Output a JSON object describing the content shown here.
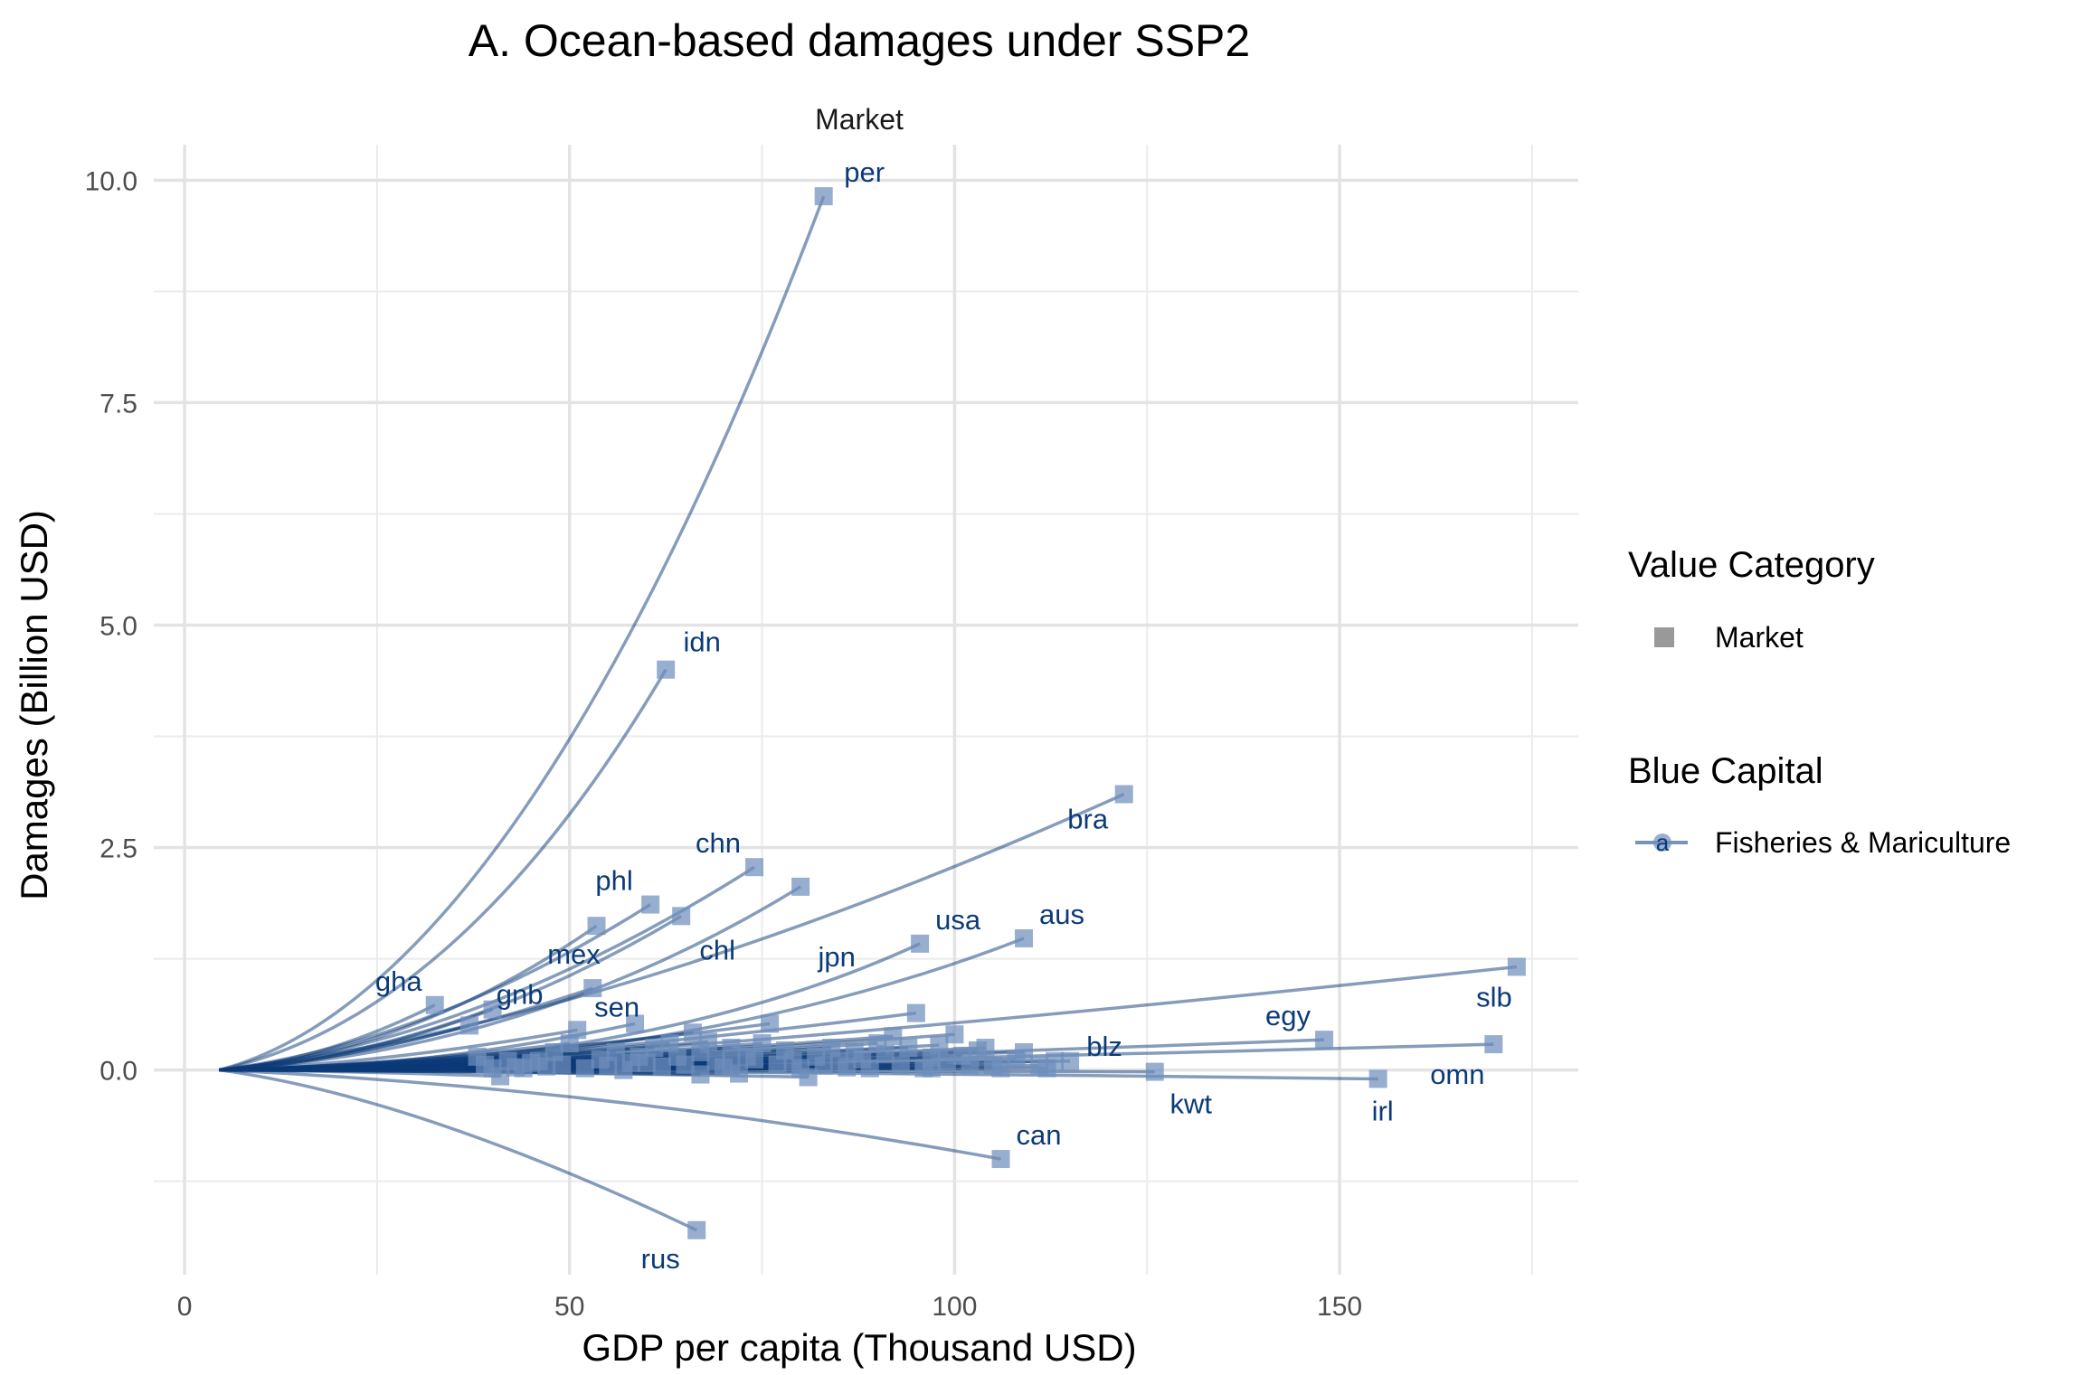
{
  "chart_data": {
    "type": "scatter",
    "title": "A. Ocean-based damages under SSP2",
    "facet": "Market",
    "xlabel": "GDP per capita (Thousand USD)",
    "ylabel": "Damages (Billion USD)",
    "xlim": [
      -4,
      181
    ],
    "ylim": [
      -2.3,
      10.4
    ],
    "x_ticks": [
      0,
      50,
      100,
      150
    ],
    "x_tick_labels": [
      "0",
      "50",
      "100",
      "150"
    ],
    "y_ticks": [
      0,
      2.5,
      5,
      7.5,
      10
    ],
    "y_tick_labels": [
      "0.0",
      "2.5",
      "5.0",
      "7.5",
      "10.0"
    ],
    "grid": true,
    "origin": [
      4.5,
      0
    ],
    "line_color": "#0b3a78",
    "marker_color": "#6f8fbd",
    "legend": {
      "position": "right",
      "value_category_title": "Value Category",
      "value_category_item": "Market",
      "value_category_color": "#999999",
      "blue_capital_title": "Blue Capital",
      "blue_capital_item": "Fisheries & Mariculture",
      "blue_capital_glyph": "a"
    },
    "labeled_points": [
      {
        "label": "per",
        "x": 83,
        "y": 9.82,
        "ctrl_x": 44,
        "ctrl_y": 0.9
      },
      {
        "label": "idn",
        "x": 62.5,
        "y": 4.5,
        "ctrl_x": 36,
        "ctrl_y": 0.6
      },
      {
        "label": "bra",
        "x": 122,
        "y": 3.1,
        "ctrl_x": 55,
        "ctrl_y": 0.5
      },
      {
        "label": "chn",
        "x": 74,
        "y": 2.28,
        "ctrl_x": 38,
        "ctrl_y": 0.3
      },
      {
        "label": "jpn",
        "x": 80,
        "y": 2.06,
        "ctrl_x": 45,
        "ctrl_y": 0.2
      },
      {
        "label": "phl",
        "x": 60.5,
        "y": 1.86,
        "ctrl_x": 32,
        "ctrl_y": 0.3
      },
      {
        "label": "chl",
        "x": 64.5,
        "y": 1.73,
        "ctrl_x": 35,
        "ctrl_y": 0.2
      },
      {
        "label": "mex",
        "x": 53.5,
        "y": 1.62,
        "ctrl_x": 30,
        "ctrl_y": 0.2
      },
      {
        "label": "usa",
        "x": 95.5,
        "y": 1.42,
        "ctrl_x": 60,
        "ctrl_y": 0.0
      },
      {
        "label": "aus",
        "x": 109,
        "y": 1.48,
        "ctrl_x": 65,
        "ctrl_y": 0.0
      },
      {
        "label": "gha",
        "x": 32.5,
        "y": 0.73,
        "ctrl_x": 18,
        "ctrl_y": 0.1
      },
      {
        "label": "gnb",
        "x": 40,
        "y": 0.68,
        "ctrl_x": 20,
        "ctrl_y": 0.05
      },
      {
        "label": "sen",
        "x": 58.5,
        "y": 0.52,
        "ctrl_x": 30,
        "ctrl_y": 0.0
      },
      {
        "label": "slb",
        "x": 173,
        "y": 1.16,
        "ctrl_x": 60,
        "ctrl_y": 0.1
      },
      {
        "label": "egy",
        "x": 148,
        "y": 0.34,
        "ctrl_x": 60,
        "ctrl_y": 0.05
      },
      {
        "label": "omn",
        "x": 170,
        "y": 0.29,
        "ctrl_x": 70,
        "ctrl_y": 0.05
      },
      {
        "label": "blz",
        "x": 115,
        "y": 0.1,
        "ctrl_x": 50,
        "ctrl_y": 0.0
      },
      {
        "label": "kwt",
        "x": 126,
        "y": -0.02,
        "ctrl_x": 55,
        "ctrl_y": 0.0
      },
      {
        "label": "irl",
        "x": 155,
        "y": -0.1,
        "ctrl_x": 60,
        "ctrl_y": 0.0
      },
      {
        "label": "can",
        "x": 106,
        "y": -1.0,
        "ctrl_x": 55,
        "ctrl_y": -0.2
      },
      {
        "label": "rus",
        "x": 66.5,
        "y": -1.8,
        "ctrl_x": 30,
        "ctrl_y": -0.3
      }
    ],
    "other_points": [
      [
        37,
        0.5
      ],
      [
        41,
        -0.07
      ],
      [
        38,
        0.15
      ],
      [
        44,
        0.02
      ],
      [
        46,
        0.1
      ],
      [
        48,
        0.2
      ],
      [
        50,
        0.3
      ],
      [
        51,
        0.45
      ],
      [
        53,
        0.92
      ],
      [
        52,
        0.02
      ],
      [
        55,
        0.05
      ],
      [
        56,
        0.2
      ],
      [
        57,
        0.0
      ],
      [
        59,
        0.15
      ],
      [
        60,
        0.08
      ],
      [
        61,
        0.25
      ],
      [
        62,
        0.04
      ],
      [
        63,
        0.3
      ],
      [
        64,
        0.15
      ],
      [
        65,
        0.06
      ],
      [
        66,
        0.42
      ],
      [
        67,
        0.2
      ],
      [
        67,
        -0.05
      ],
      [
        68,
        0.32
      ],
      [
        69,
        0.1
      ],
      [
        70,
        0.03
      ],
      [
        71,
        0.25
      ],
      [
        72,
        -0.04
      ],
      [
        73,
        0.15
      ],
      [
        74,
        0.12
      ],
      [
        75,
        0.3
      ],
      [
        76,
        0.52
      ],
      [
        77,
        0.06
      ],
      [
        78,
        0.22
      ],
      [
        79,
        0.1
      ],
      [
        80,
        0.02
      ],
      [
        81,
        -0.08
      ],
      [
        82,
        0.15
      ],
      [
        84,
        0.25
      ],
      [
        85,
        0.1
      ],
      [
        86,
        0.03
      ],
      [
        87,
        0.2
      ],
      [
        88,
        0.12
      ],
      [
        89,
        0.02
      ],
      [
        90,
        0.3
      ],
      [
        91,
        0.18
      ],
      [
        92,
        0.38
      ],
      [
        93,
        0.05
      ],
      [
        94,
        0.25
      ],
      [
        95,
        0.64
      ],
      [
        96,
        0.02
      ],
      [
        97,
        0.14
      ],
      [
        98,
        0.28
      ],
      [
        99,
        0.08
      ],
      [
        100,
        0.4
      ],
      [
        101,
        0.16
      ],
      [
        102,
        0.05
      ],
      [
        103,
        0.22
      ],
      [
        104,
        0.25
      ],
      [
        106,
        0.02
      ],
      [
        108,
        0.12
      ],
      [
        109,
        0.2
      ],
      [
        111,
        0.05
      ],
      [
        112,
        0.02
      ],
      [
        113,
        0.1
      ],
      [
        58,
        0.08
      ],
      [
        54,
        0.12
      ],
      [
        49,
        0.06
      ],
      [
        47,
        0.04
      ],
      [
        45,
        0.08
      ],
      [
        43,
        0.03
      ],
      [
        42,
        0.1
      ],
      [
        40,
        0.02
      ],
      [
        39,
        0.06
      ],
      [
        71,
        0.05
      ],
      [
        83,
        0.05
      ],
      [
        97,
        0.02
      ],
      [
        105,
        0.05
      ]
    ]
  }
}
